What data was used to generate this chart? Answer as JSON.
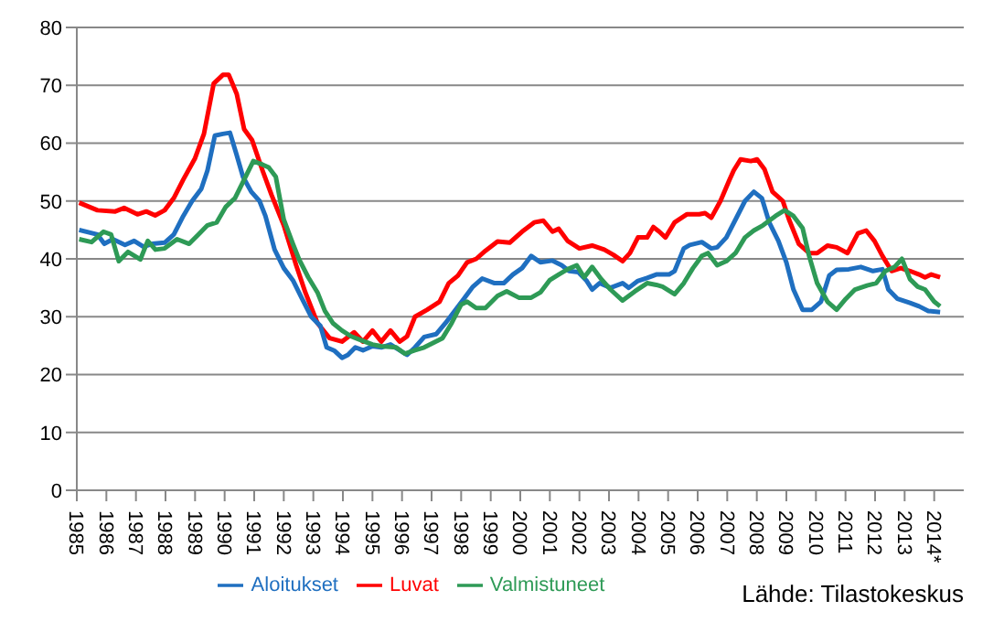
{
  "chart_data": {
    "type": "line",
    "xlim": [
      1985,
      2015
    ],
    "xticks": [
      1985,
      1986,
      1987,
      1988,
      1989,
      1990,
      1991,
      1992,
      1993,
      1994,
      1995,
      1996,
      1997,
      1998,
      1999,
      2000,
      2001,
      2002,
      2003,
      2004,
      2005,
      2006,
      2007,
      2008,
      2009,
      2010,
      2011,
      2012,
      2013,
      {
        "value": 2014,
        "label": "2014*"
      }
    ],
    "ylim": [
      0,
      80
    ],
    "yticks": [
      0,
      10,
      20,
      30,
      40,
      50,
      60,
      70,
      80
    ],
    "grid": "y",
    "legend": "bottom",
    "marker": "none",
    "line_style": "solid",
    "annotations": [
      "Lähde: Tilastokeskus"
    ],
    "series": [
      {
        "name": "Luvat",
        "color": "#ff0000",
        "x": [
          1985.08,
          1985.7,
          1986.3,
          1986.6,
          1987.05,
          1987.35,
          1987.65,
          1987.97,
          1988.28,
          1988.6,
          1989.0,
          1989.3,
          1989.63,
          1989.94,
          1990.14,
          1990.41,
          1990.66,
          1990.93,
          1991.28,
          1991.59,
          1992.0,
          1992.42,
          1992.73,
          1993.14,
          1993.55,
          1993.97,
          1994.38,
          1994.68,
          1995.0,
          1995.3,
          1995.61,
          1995.92,
          1996.17,
          1996.44,
          1996.85,
          1997.27,
          1997.58,
          1997.89,
          1998.2,
          1998.51,
          1998.82,
          1999.23,
          1999.64,
          2000.06,
          2000.47,
          2000.78,
          2001.09,
          2001.3,
          2001.6,
          2002.0,
          2002.43,
          2002.84,
          2003.15,
          2003.46,
          2003.71,
          2003.98,
          2004.29,
          2004.5,
          2004.7,
          2004.91,
          2005.22,
          2005.63,
          2006.05,
          2006.25,
          2006.46,
          2006.77,
          2007.08,
          2007.22,
          2007.45,
          2007.8,
          2008.01,
          2008.26,
          2008.53,
          2008.88,
          2009.09,
          2009.42,
          2009.77,
          2010.04,
          2010.39,
          2010.7,
          2011.07,
          2011.42,
          2011.7,
          2011.98,
          2012.25,
          2012.56,
          2012.87,
          2013.18,
          2013.49,
          2013.69,
          2013.9,
          2014.2
        ],
        "values": [
          49.7,
          48.4,
          48.2,
          48.8,
          47.7,
          48.2,
          47.5,
          48.4,
          50.5,
          53.7,
          57.4,
          61.6,
          70.3,
          71.8,
          71.8,
          68.5,
          62.4,
          60.5,
          55.3,
          51,
          45.8,
          38.9,
          34.2,
          28.9,
          26.3,
          25.7,
          27.3,
          25.7,
          27.6,
          25.7,
          27.6,
          25.7,
          26.6,
          30,
          31.2,
          32.6,
          35.8,
          37.1,
          39.4,
          40,
          41.4,
          43,
          42.8,
          44.7,
          46.3,
          46.6,
          44.7,
          45.2,
          43.1,
          41.8,
          42.3,
          41.6,
          40.7,
          39.6,
          41,
          43.7,
          43.7,
          45.5,
          44.7,
          43.7,
          46.3,
          47.7,
          47.7,
          47.9,
          47.1,
          50,
          53.7,
          55.3,
          57.2,
          56.9,
          57.2,
          55.5,
          51.6,
          50,
          46.8,
          42.6,
          41,
          41,
          42.3,
          42,
          41,
          44.4,
          44.9,
          43.1,
          40.5,
          37.9,
          38.4,
          37.9,
          37.3,
          36.8,
          37.3,
          36.8
        ]
      },
      {
        "name": "Aloitukset",
        "color": "#1f6fc0",
        "x": [
          1985.08,
          1985.7,
          1985.93,
          1986.22,
          1986.63,
          1986.94,
          1987.25,
          1987.56,
          1987.97,
          1988.28,
          1988.6,
          1988.9,
          1989.21,
          1989.42,
          1989.67,
          1989.94,
          1990.18,
          1990.41,
          1990.62,
          1990.9,
          1991.18,
          1991.38,
          1991.69,
          1992.0,
          1992.31,
          1992.62,
          1992.93,
          1993.24,
          1993.45,
          1993.72,
          1993.97,
          1994.17,
          1994.42,
          1994.68,
          1995.0,
          1995.3,
          1995.61,
          1995.92,
          1996.17,
          1996.44,
          1996.75,
          1997.16,
          1997.47,
          1997.78,
          1998.09,
          1998.4,
          1998.71,
          1999.13,
          1999.44,
          1999.75,
          2000.06,
          2000.37,
          2000.68,
          2001.09,
          2001.4,
          2001.65,
          2001.96,
          2002.23,
          2002.43,
          2002.68,
          2003.05,
          2003.46,
          2003.67,
          2003.98,
          2004.29,
          2004.6,
          2005.03,
          2005.22,
          2005.53,
          2005.73,
          2006.14,
          2006.46,
          2006.66,
          2006.97,
          2007.28,
          2007.6,
          2007.9,
          2008.17,
          2008.42,
          2008.73,
          2009.0,
          2009.24,
          2009.55,
          2009.86,
          2010.17,
          2010.45,
          2010.7,
          2011.11,
          2011.52,
          2011.93,
          2012.25,
          2012.45,
          2012.76,
          2013.18,
          2013.49,
          2013.8,
          2014.2
        ],
        "values": [
          45,
          44.2,
          42.6,
          43.4,
          42.4,
          43.1,
          42.1,
          42.6,
          42.8,
          44.2,
          47.4,
          50,
          52.1,
          55.3,
          61.3,
          61.6,
          61.8,
          57.9,
          54.2,
          51.6,
          50,
          47.4,
          41.6,
          38.4,
          36.3,
          33.1,
          30,
          28.4,
          24.7,
          24.1,
          22.9,
          23.4,
          24.7,
          24.2,
          24.9,
          24.7,
          25.2,
          24.2,
          23.4,
          24.7,
          26.5,
          27,
          28.9,
          31,
          33.1,
          35.2,
          36.6,
          35.8,
          35.8,
          37.3,
          38.4,
          40.5,
          39.4,
          39.7,
          38.9,
          37.9,
          37.7,
          36.3,
          34.7,
          35.8,
          35,
          35.8,
          35,
          36.2,
          36.7,
          37.3,
          37.3,
          37.9,
          41.8,
          42.4,
          42.9,
          41.8,
          42,
          43.7,
          46.8,
          50,
          51.6,
          50.5,
          46.3,
          43.1,
          39.4,
          34.7,
          31.2,
          31.2,
          32.6,
          37.1,
          38.1,
          38.2,
          38.6,
          37.9,
          38.2,
          34.7,
          33.1,
          32.4,
          31.8,
          31,
          30.8
        ]
      },
      {
        "name": "Valmistuneet",
        "color": "#2e9a56",
        "x": [
          1985.08,
          1985.5,
          1985.9,
          1986.16,
          1986.42,
          1986.73,
          1987.15,
          1987.4,
          1987.66,
          1987.97,
          1988.39,
          1988.8,
          1989.11,
          1989.42,
          1989.73,
          1990.04,
          1990.35,
          1990.66,
          1990.97,
          1991.28,
          1991.49,
          1991.73,
          1992.0,
          1992.31,
          1992.52,
          1992.83,
          1993.14,
          1993.39,
          1993.66,
          1993.97,
          1994.28,
          1994.59,
          1995.0,
          1995.3,
          1995.8,
          1996.1,
          1996.44,
          1996.75,
          1997.06,
          1997.37,
          1997.68,
          1998.0,
          1998.2,
          1998.51,
          1998.82,
          1999.23,
          1999.54,
          1999.95,
          2000.37,
          2000.68,
          2000.99,
          2001.3,
          2001.6,
          2001.91,
          2002.16,
          2002.43,
          2002.74,
          2003.05,
          2003.46,
          2003.88,
          2004.29,
          2004.6,
          2004.81,
          2005.22,
          2005.53,
          2005.84,
          2006.14,
          2006.35,
          2006.66,
          2006.97,
          2007.28,
          2007.6,
          2007.9,
          2008.21,
          2008.63,
          2008.94,
          2009.24,
          2009.55,
          2009.77,
          2010.04,
          2010.39,
          2010.7,
          2011.01,
          2011.32,
          2011.73,
          2012.04,
          2012.35,
          2012.66,
          2012.91,
          2013.18,
          2013.44,
          2013.69,
          2014.0,
          2014.2
        ],
        "values": [
          43.4,
          42.9,
          44.7,
          44.2,
          39.6,
          41.2,
          39.9,
          43.1,
          41.6,
          41.8,
          43.4,
          42.6,
          44.2,
          45.8,
          46.3,
          49,
          50.5,
          53.7,
          56.9,
          56.3,
          55.8,
          54.2,
          46.8,
          42.6,
          39.9,
          36.8,
          34.2,
          31,
          28.9,
          27.6,
          26.6,
          26,
          25.2,
          24.9,
          24.7,
          23.6,
          24.2,
          24.7,
          25.5,
          26.3,
          28.9,
          32.1,
          32.6,
          31.5,
          31.5,
          33.6,
          34.4,
          33.3,
          33.3,
          34.2,
          36.3,
          37.3,
          38.2,
          38.9,
          36.8,
          38.6,
          36.5,
          34.7,
          32.8,
          34.4,
          35.8,
          35.5,
          35.2,
          33.9,
          35.8,
          38.4,
          40.5,
          41,
          38.9,
          39.6,
          41,
          43.7,
          44.9,
          45.8,
          47.4,
          48.4,
          47.4,
          45.3,
          40.5,
          35.8,
          32.6,
          31.2,
          33.1,
          34.7,
          35.4,
          35.8,
          37.9,
          38.6,
          40,
          36.5,
          35.2,
          34.7,
          32.6,
          31.8
        ]
      }
    ]
  }
}
